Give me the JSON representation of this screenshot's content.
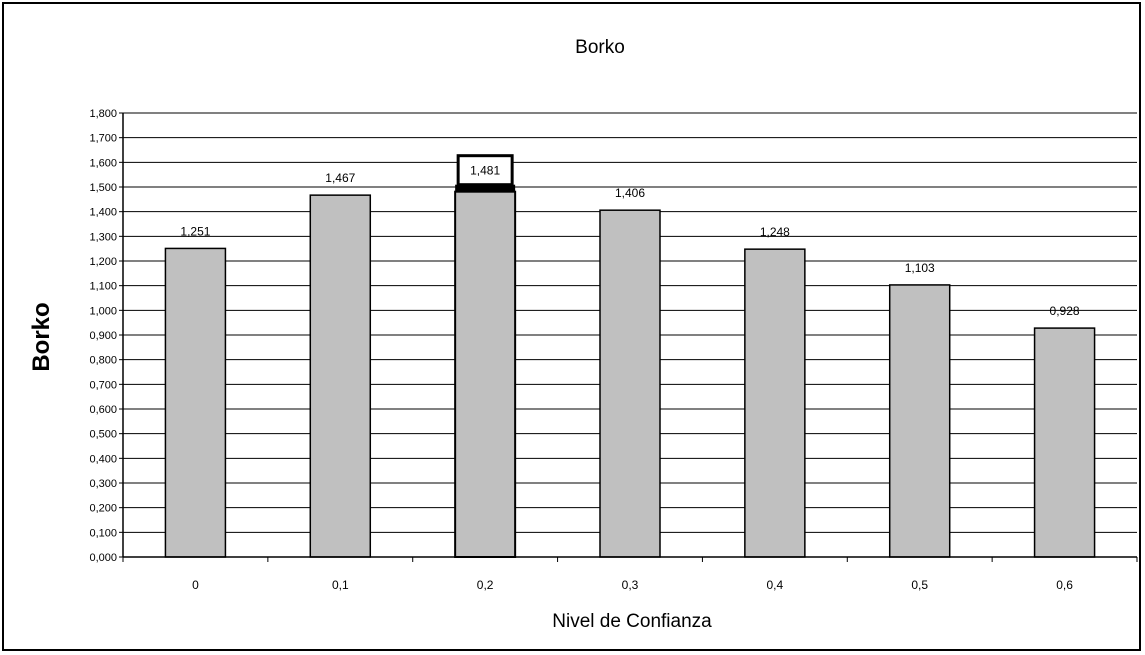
{
  "chart_data": {
    "type": "bar",
    "title": "Borko",
    "xlabel": "Nivel de Confianza",
    "ylabel": "Borko",
    "categories": [
      "0",
      "0,1",
      "0,2",
      "0,3",
      "0,4",
      "0,5",
      "0,6"
    ],
    "values": [
      1.251,
      1.467,
      1.481,
      1.406,
      1.248,
      1.103,
      0.928
    ],
    "data_labels": [
      "1,251",
      "1,467",
      "1,481",
      "1,406",
      "1,248",
      "1,103",
      "0,928"
    ],
    "highlighted_index": 2,
    "ylim": [
      0,
      1.8
    ],
    "y_tick_step": 0.1,
    "y_tick_labels": [
      "0,000",
      "0,100",
      "0,200",
      "0,300",
      "0,400",
      "0,500",
      "0,600",
      "0,700",
      "0,800",
      "0,900",
      "1,000",
      "1,100",
      "1,200",
      "1,300",
      "1,400",
      "1,500",
      "1,600",
      "1,700",
      "1,800"
    ],
    "grid": true,
    "legend": "none",
    "colors": {
      "bar": "#c0c0c0",
      "bar_stroke": "#000000",
      "grid": "#000000",
      "background": "#ffffff"
    }
  }
}
